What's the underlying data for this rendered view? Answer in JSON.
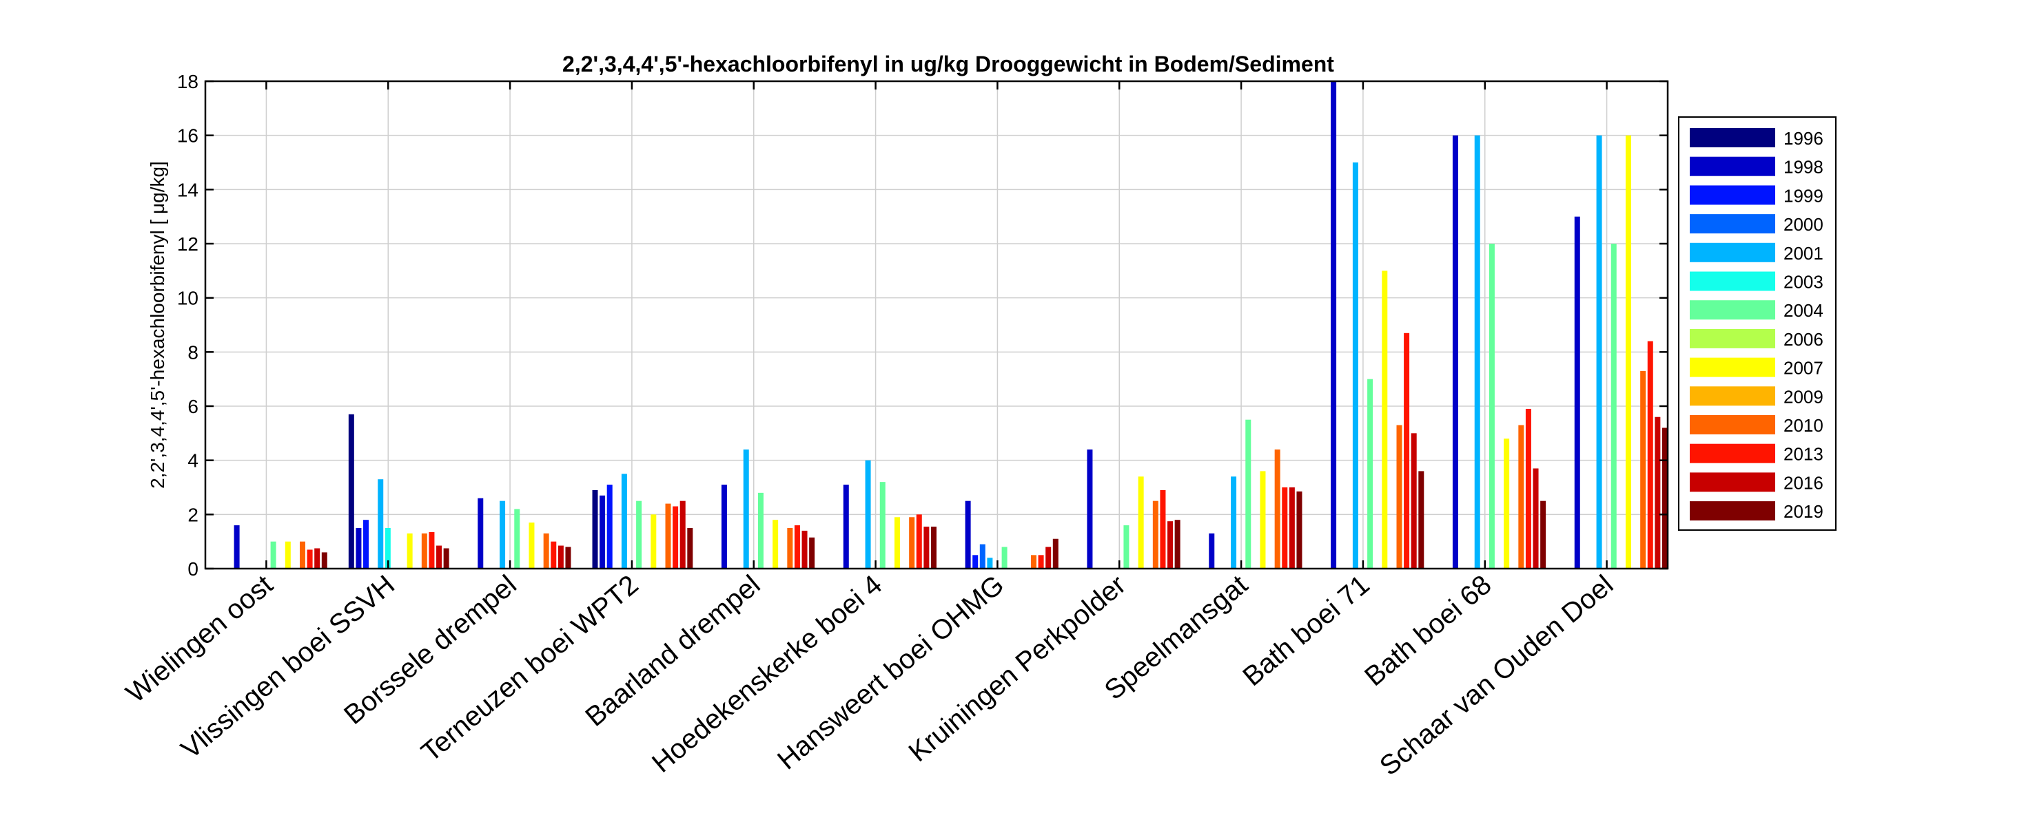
{
  "chart_data": {
    "type": "bar",
    "title": "2,2',3,4,4',5'-hexachloorbifenyl in ug/kg Drooggewicht in Bodem/Sediment",
    "xlabel": "",
    "ylabel": "2,2',3,4,4',5'-hexachloorbifenyl [ μg/kg]",
    "ylim": [
      0,
      18
    ],
    "yticks": [
      0,
      2,
      4,
      6,
      8,
      10,
      12,
      14,
      16,
      18
    ],
    "grid": true,
    "legend_position": "right",
    "categories": [
      "Wielingen oost",
      "Vlissingen boei SSVH",
      "Borssele drempel",
      "Terneuzen boei WPT2",
      "Baarland drempel",
      "Hoedekenskerke boei 4",
      "Hansweert boei OHMG",
      "Kruiningen Perkpolder",
      "Speelmansgat",
      "Bath boei 71",
      "Bath boei 68",
      "Schaar van Ouden Doel"
    ],
    "series": [
      {
        "name": "1996",
        "color": "#00007f",
        "values": [
          null,
          5.7,
          null,
          2.9,
          null,
          null,
          null,
          null,
          null,
          null,
          null,
          null
        ]
      },
      {
        "name": "1998",
        "color": "#0000c8",
        "values": [
          1.6,
          1.5,
          2.6,
          2.7,
          3.1,
          3.1,
          2.5,
          4.4,
          1.3,
          18,
          16,
          13
        ]
      },
      {
        "name": "1999",
        "color": "#0014ff",
        "values": [
          null,
          1.8,
          null,
          3.1,
          null,
          null,
          0.5,
          null,
          null,
          null,
          null,
          null
        ]
      },
      {
        "name": "2000",
        "color": "#0064ff",
        "values": [
          null,
          null,
          null,
          null,
          null,
          null,
          0.9,
          null,
          null,
          null,
          null,
          null
        ]
      },
      {
        "name": "2001",
        "color": "#00b4ff",
        "values": [
          null,
          3.3,
          2.5,
          3.5,
          4.4,
          4.0,
          0.4,
          null,
          3.4,
          15,
          16,
          16
        ]
      },
      {
        "name": "2003",
        "color": "#14ffeb",
        "values": [
          null,
          1.5,
          null,
          null,
          null,
          null,
          null,
          null,
          null,
          null,
          null,
          null
        ]
      },
      {
        "name": "2004",
        "color": "#64ff9b",
        "values": [
          1.0,
          null,
          2.2,
          2.5,
          2.8,
          3.2,
          0.8,
          1.6,
          5.5,
          7.0,
          12,
          12
        ]
      },
      {
        "name": "2006",
        "color": "#b4ff4b",
        "values": [
          null,
          null,
          null,
          null,
          null,
          null,
          null,
          null,
          null,
          null,
          null,
          null
        ]
      },
      {
        "name": "2007",
        "color": "#ffff00",
        "values": [
          1.0,
          1.3,
          1.7,
          2.0,
          1.8,
          1.9,
          null,
          3.4,
          3.6,
          11,
          4.8,
          16
        ]
      },
      {
        "name": "2009",
        "color": "#ffb400",
        "values": [
          null,
          null,
          null,
          null,
          null,
          null,
          null,
          null,
          null,
          null,
          null,
          null
        ]
      },
      {
        "name": "2010",
        "color": "#ff6400",
        "values": [
          1.0,
          1.3,
          1.3,
          2.4,
          1.5,
          1.9,
          0.5,
          2.5,
          4.4,
          5.3,
          5.3,
          7.3
        ]
      },
      {
        "name": "2013",
        "color": "#ff1400",
        "values": [
          0.7,
          1.35,
          1.0,
          2.3,
          1.6,
          2.0,
          0.5,
          2.9,
          3.0,
          8.7,
          5.9,
          8.4
        ]
      },
      {
        "name": "2016",
        "color": "#c80000",
        "values": [
          0.75,
          0.85,
          0.85,
          2.5,
          1.4,
          1.55,
          0.8,
          1.75,
          3.0,
          5.0,
          3.7,
          5.6
        ]
      },
      {
        "name": "2019",
        "color": "#7f0000",
        "values": [
          0.6,
          0.75,
          0.8,
          1.5,
          1.15,
          1.55,
          1.1,
          1.8,
          2.85,
          3.6,
          2.5,
          5.2
        ]
      }
    ]
  }
}
